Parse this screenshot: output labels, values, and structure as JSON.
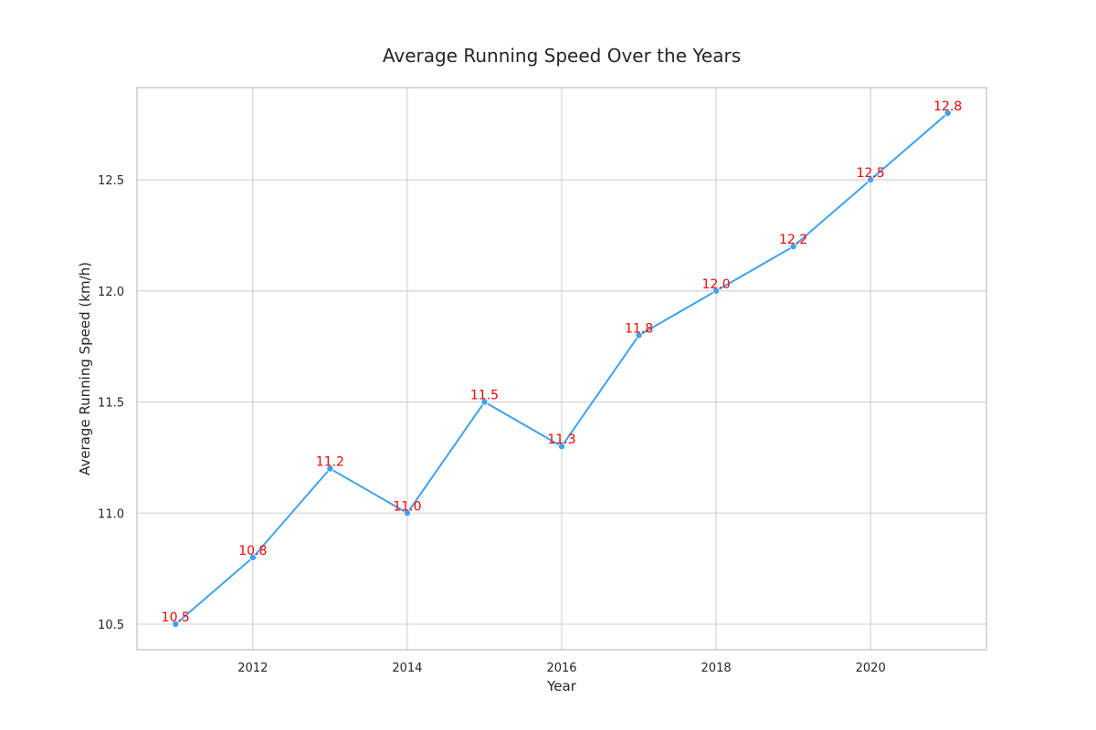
{
  "chart_data": {
    "type": "line",
    "title": "Average Running Speed Over the Years",
    "xlabel": "Year",
    "ylabel": "Average Running Speed (km/h)",
    "x": [
      2011,
      2012,
      2013,
      2014,
      2015,
      2016,
      2017,
      2018,
      2019,
      2020,
      2021
    ],
    "series": [
      {
        "values": [
          10.5,
          10.8,
          11.2,
          11.0,
          11.5,
          11.3,
          11.8,
          12.0,
          12.2,
          12.5,
          12.8
        ]
      }
    ],
    "data_labels": [
      "10.5",
      "10.8",
      "11.2",
      "11.0",
      "11.5",
      "11.3",
      "11.8",
      "12.0",
      "12.2",
      "12.5",
      "12.8"
    ],
    "x_ticks": [
      2012,
      2014,
      2016,
      2018,
      2020
    ],
    "y_ticks": [
      10.5,
      11.0,
      11.5,
      12.0,
      12.5
    ],
    "x_tick_labels": [
      "2012",
      "2014",
      "2016",
      "2018",
      "2020"
    ],
    "y_tick_labels": [
      "10.5",
      "11.0",
      "11.5",
      "12.0",
      "12.5"
    ],
    "xlim": [
      2010.5,
      2021.5
    ],
    "ylim": [
      10.385,
      12.915
    ],
    "grid": true,
    "legend": "none",
    "colors": {
      "line": "#3fa2f0",
      "marker": "#3fa2f0",
      "data_label": "#ff0000",
      "grid": "#d0d0d0",
      "frame": "#cccccc"
    }
  }
}
